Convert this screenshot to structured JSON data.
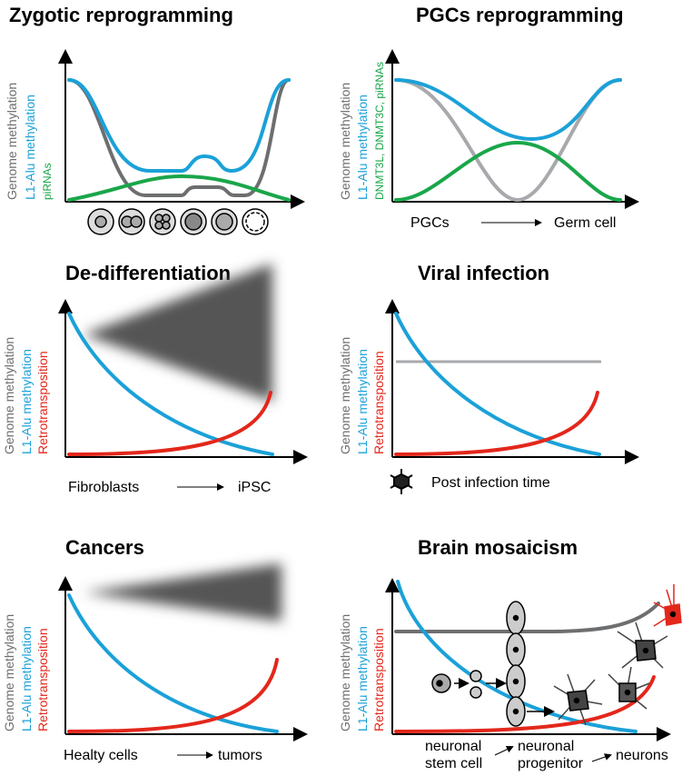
{
  "panels": [
    {
      "title": "Zygotic reprogramming",
      "y_labels": [
        "Genome methylation",
        "L1-Alu methylation",
        "piRNAs"
      ]
    },
    {
      "title": "PGCs reprogramming",
      "y_labels": [
        "Genome methylation",
        "L1-Alu methylation",
        "DNMT3L, DNMT3C, piRNAs"
      ],
      "x_labels": [
        "PGCs",
        "Germ cell"
      ]
    },
    {
      "title": "De-differentiation",
      "y_labels": [
        "Genome methylation",
        "L1-Alu methylation",
        "Retrotransposition"
      ],
      "x_labels": [
        "Fibroblasts",
        "iPSC"
      ]
    },
    {
      "title": "Viral infection",
      "y_labels": [
        "Genome methylation",
        "L1-Alu methylation",
        "Retrotransposition"
      ],
      "x_labels": [
        "Post infection time"
      ]
    },
    {
      "title": "Cancers",
      "y_labels": [
        "Genome methylation",
        "L1-Alu methylation",
        "Retrotransposition"
      ],
      "x_labels": [
        "Healty cells",
        "tumors"
      ]
    },
    {
      "title": "Brain mosaicism",
      "y_labels": [
        "Genome methylation",
        "L1-Alu methylation",
        "Retrotransposition"
      ],
      "x_labels": [
        "neuronal",
        "stem cell",
        "neuronal",
        "progenitor",
        "neurons"
      ]
    }
  ]
}
